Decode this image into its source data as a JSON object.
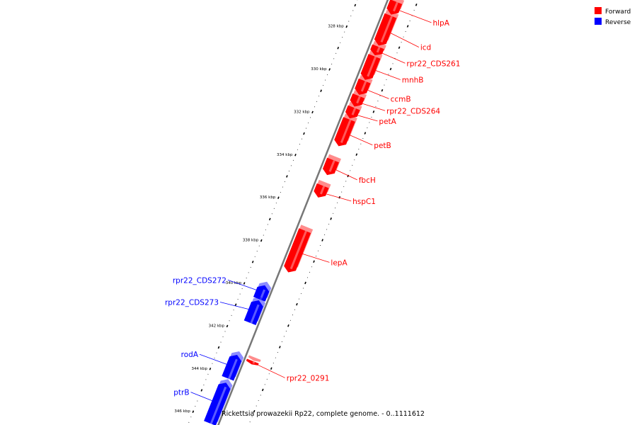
{
  "caption": "Rickettsia prowazekii Rp22, complete genome. - 0..1111612",
  "colors": {
    "forward": "#ff0000",
    "reverse": "#0000ff",
    "backbone": "#777777"
  },
  "legend": [
    {
      "label": "Forward",
      "color": "#ff0000"
    },
    {
      "label": "Reverse",
      "color": "#0000ff"
    }
  ],
  "ticks": [
    {
      "kbp": 328,
      "label": "328 kbp"
    },
    {
      "kbp": 330,
      "label": "330 kbp"
    },
    {
      "kbp": 332,
      "label": "332 kbp"
    },
    {
      "kbp": 334,
      "label": "334 kbp"
    },
    {
      "kbp": 336,
      "label": "336 kbp"
    },
    {
      "kbp": 338,
      "label": "338 kbp"
    },
    {
      "kbp": 340,
      "label": "340 kbp"
    },
    {
      "kbp": 342,
      "label": "342 kbp"
    },
    {
      "kbp": 344,
      "label": "344 kbp"
    },
    {
      "kbp": 346,
      "label": "346 kbp"
    }
  ],
  "genes": [
    {
      "name": "hlpA",
      "strand": "forward",
      "start_kbp": 326.2,
      "end_kbp": 326.8
    },
    {
      "name": "icd",
      "strand": "forward",
      "start_kbp": 326.85,
      "end_kbp": 328.25
    },
    {
      "name": "rpr22_CDS261",
      "strand": "forward",
      "start_kbp": 328.3,
      "end_kbp": 328.7
    },
    {
      "name": "mnhB",
      "strand": "forward",
      "start_kbp": 328.75,
      "end_kbp": 329.85
    },
    {
      "name": "ccmB",
      "strand": "forward",
      "start_kbp": 329.9,
      "end_kbp": 330.55
    },
    {
      "name": "rpr22_CDS264",
      "strand": "forward",
      "start_kbp": 330.6,
      "end_kbp": 331.1
    },
    {
      "name": "petA",
      "strand": "forward",
      "start_kbp": 331.15,
      "end_kbp": 331.65
    },
    {
      "name": "petB",
      "strand": "forward",
      "start_kbp": 331.7,
      "end_kbp": 332.95
    },
    {
      "name": "fbcH",
      "strand": "forward",
      "start_kbp": 333.6,
      "end_kbp": 334.3
    },
    {
      "name": "hspC1",
      "strand": "forward",
      "start_kbp": 334.8,
      "end_kbp": 335.35
    },
    {
      "name": "lepA",
      "strand": "forward",
      "start_kbp": 336.9,
      "end_kbp": 338.85
    },
    {
      "name": "rpr22_CDS272",
      "strand": "reverse",
      "start_kbp": 339.75,
      "end_kbp": 340.4
    },
    {
      "name": "rpr22_CDS273",
      "strand": "reverse",
      "start_kbp": 340.45,
      "end_kbp": 341.5
    },
    {
      "name": "rpr22_0291",
      "strand": "forward",
      "start_kbp": 343.0,
      "end_kbp": 343.15
    },
    {
      "name": "rodA",
      "strand": "reverse",
      "start_kbp": 343.0,
      "end_kbp": 344.1
    },
    {
      "name": "ptrB",
      "strand": "reverse",
      "start_kbp": 344.3,
      "end_kbp": 346.2
    }
  ]
}
